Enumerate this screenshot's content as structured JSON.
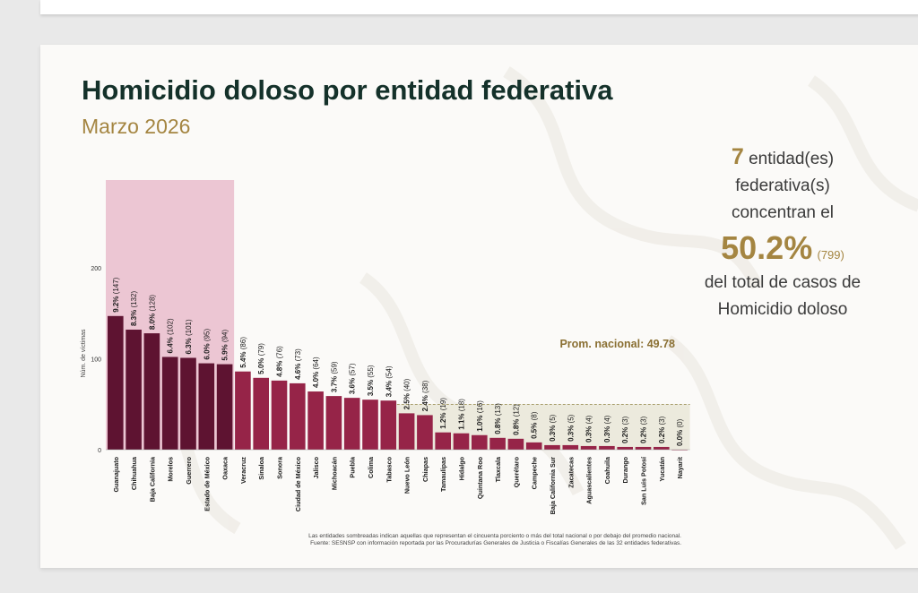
{
  "page": {
    "title": "Homicidio doloso por entidad federativa",
    "subtitle": "Marzo 2026"
  },
  "summary": {
    "count": "7",
    "line1": "entidad(es) federativa(s)",
    "line2": "concentran el",
    "percent": "50.2%",
    "percent_count": "(799)",
    "line3": "del total de casos de",
    "line4": "Homicidio doloso"
  },
  "footnote": {
    "line1": "Las entidades sombreadas indican aquellas que representan el cincuenta porciento o más del total nacional o por debajo del promedio nacional.",
    "line2": "Fuente: SESNSP con información reportada por las Procuradurías Generales de Justicia o Fiscalías Generales de las 32 entidades federativas."
  },
  "colors": {
    "top_bar": "#5e1331",
    "mid_bar": "#962448",
    "low_bar": "#962448",
    "top_band": "#e9bccd",
    "low_band": "#eceadd",
    "avg_label": "#8a6f32"
  },
  "chart_data": {
    "type": "bar",
    "ylabel": "Núm. de víctimas",
    "yticks": [
      0,
      100,
      200
    ],
    "ylim": [
      0,
      200
    ],
    "average": 49.78,
    "average_label": "Prom. nacional: 49.78",
    "top_count": 7,
    "categories": [
      "Guanajuato",
      "Chihuahua",
      "Baja California",
      "Morelos",
      "Guerrero",
      "Estado de México",
      "Oaxaca",
      "Veracruz",
      "Sinaloa",
      "Sonora",
      "Ciudad de México",
      "Jalisco",
      "Michoacán",
      "Puebla",
      "Colima",
      "Tabasco",
      "Nuevo León",
      "Chiapas",
      "Tamaulipas",
      "Hidalgo",
      "Quintana Roo",
      "Tlaxcala",
      "Querétaro",
      "Campeche",
      "Baja California Sur",
      "Zacatecas",
      "Aguascalientes",
      "Coahuila",
      "Durango",
      "San Luis Potosí",
      "Yucatán",
      "Nayarit"
    ],
    "values": [
      147,
      132,
      128,
      102,
      101,
      95,
      94,
      86,
      79,
      76,
      73,
      64,
      59,
      57,
      55,
      54,
      40,
      38,
      19,
      18,
      16,
      13,
      12,
      8,
      5,
      5,
      4,
      4,
      3,
      3,
      3,
      0
    ],
    "percents": [
      "9.2%",
      "8.3%",
      "8.0%",
      "6.4%",
      "6.3%",
      "6.0%",
      "5.9%",
      "5.4%",
      "5.0%",
      "4.8%",
      "4.6%",
      "4.0%",
      "3.7%",
      "3.6%",
      "3.5%",
      "3.4%",
      "2.5%",
      "2.4%",
      "1.2%",
      "1.1%",
      "1.0%",
      "0.8%",
      "0.8%",
      "0.5%",
      "0.3%",
      "0.3%",
      "0.3%",
      "0.3%",
      "0.2%",
      "0.2%",
      "0.2%",
      "0.0%"
    ],
    "counts": [
      "(147)",
      "(132)",
      "(128)",
      "(102)",
      "(101)",
      "(95)",
      "(94)",
      "(86)",
      "(79)",
      "(76)",
      "(73)",
      "(64)",
      "(59)",
      "(57)",
      "(55)",
      "(54)",
      "(40)",
      "(38)",
      "(19)",
      "(18)",
      "(16)",
      "(13)",
      "(12)",
      "(8)",
      "(5)",
      "(5)",
      "(4)",
      "(4)",
      "(3)",
      "(3)",
      "(3)",
      "(0)"
    ]
  }
}
